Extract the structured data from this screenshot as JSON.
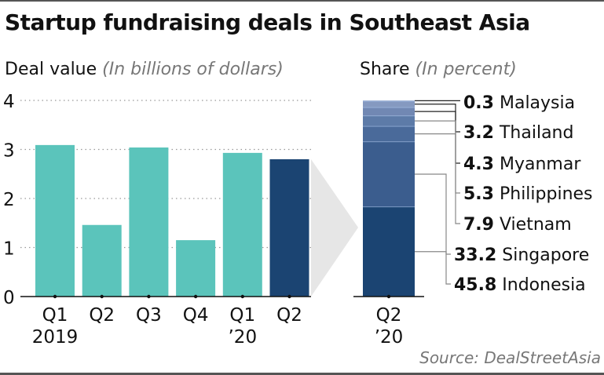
{
  "title": "Startup fundraising deals in Southeast Asia",
  "left_subtitle": {
    "main": "Deal value",
    "note": "(In billions of dollars)"
  },
  "right_subtitle": {
    "main": "Share",
    "note": "(In percent)"
  },
  "source": "Source: DealStreetAsia",
  "colors": {
    "teal": "#5bc4bb",
    "navy": "#1b4472",
    "arrow": "#e6e6e6"
  },
  "chart_data": [
    {
      "type": "bar",
      "title": "Deal value",
      "ylabel": "(In billions of dollars)",
      "ylim": [
        0,
        4
      ],
      "yticks": [
        "0",
        "1",
        "2",
        "3",
        "4"
      ],
      "grid": true,
      "categories": [
        {
          "line1": "Q1",
          "line2": "2019"
        },
        {
          "line1": "Q2",
          "line2": ""
        },
        {
          "line1": "Q3",
          "line2": ""
        },
        {
          "line1": "Q4",
          "line2": ""
        },
        {
          "line1": "Q1",
          "line2": "’20"
        },
        {
          "line1": "Q2",
          "line2": ""
        }
      ],
      "values": [
        3.09,
        1.46,
        3.04,
        1.15,
        2.93,
        2.8
      ],
      "highlight_index": 5
    },
    {
      "type": "bar",
      "subtype": "stacked-100",
      "title": "Share",
      "ylabel": "(In percent)",
      "category": {
        "line1": "Q2",
        "line2": "’20"
      },
      "series": [
        {
          "name": "Indonesia",
          "value": 45.8,
          "label": "45.8",
          "color": "#1b4472"
        },
        {
          "name": "Singapore",
          "value": 33.2,
          "label": "33.2",
          "color": "#3b5d8e"
        },
        {
          "name": "Vietnam",
          "value": 7.9,
          "label": "7.9",
          "color": "#4a6a9a"
        },
        {
          "name": "Philippines",
          "value": 5.3,
          "label": "5.3",
          "color": "#5d7ba8"
        },
        {
          "name": "Myanmar",
          "value": 4.3,
          "label": "4.3",
          "color": "#7188b3"
        },
        {
          "name": "Thailand",
          "value": 3.2,
          "label": "3.2",
          "color": "#8599c0"
        },
        {
          "name": "Malaysia",
          "value": 0.3,
          "label": "0.3",
          "color": "#9eaed0"
        }
      ]
    }
  ]
}
